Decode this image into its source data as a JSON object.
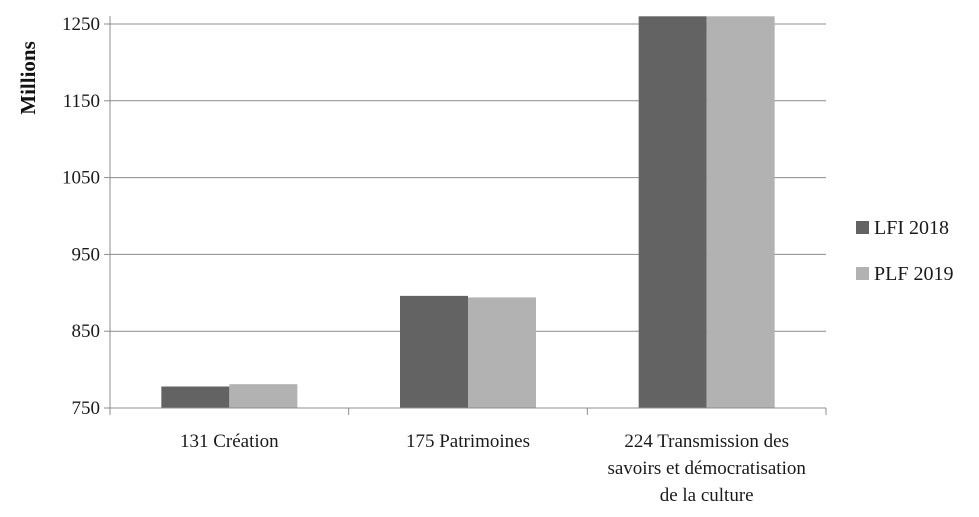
{
  "chart_data": {
    "type": "bar",
    "title": "",
    "xlabel": "",
    "ylabel": "Millions",
    "ylim": [
      750,
      1250
    ],
    "yticks": [
      750,
      850,
      950,
      1050,
      1150,
      1250
    ],
    "grid": true,
    "legend_position": "right",
    "categories": [
      [
        "131 Création"
      ],
      [
        "175 Patrimoines"
      ],
      [
        "224 Transmission des",
        "savoirs et démocratisation",
        "de la culture"
      ]
    ],
    "series": [
      {
        "name": "LFI 2018",
        "color": "#636363",
        "values": [
          778,
          896,
          1260
        ]
      },
      {
        "name": "PLF 2019",
        "color": "#b2b2b2",
        "values": [
          781,
          894,
          1260
        ]
      }
    ]
  }
}
